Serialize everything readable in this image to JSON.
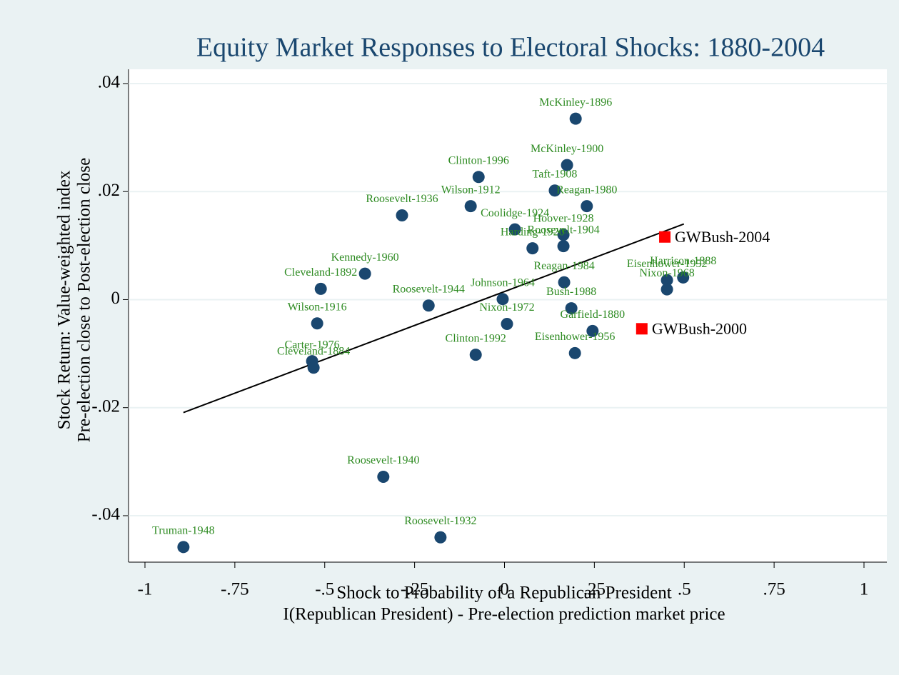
{
  "chart_data": {
    "type": "scatter",
    "title": "Equity Market Responses to Electoral Shocks: 1880-2004",
    "x_label": [
      "Shock to Probability of a Republican President",
      "I(Republican President) - Pre-election prediction market price"
    ],
    "y_label": [
      "Stock Return: Value-weighted index",
      "Pre-election close to Post-election close"
    ],
    "xlim": [
      -1.0457,
      1.0636
    ],
    "ylim": [
      -0.0486,
      0.04264
    ],
    "xticks": [
      -1,
      {
        "value": -0.75,
        "label": "-.75"
      },
      {
        "value": -0.5,
        "label": "-.5"
      },
      {
        "value": -0.25,
        "label": "-.25"
      },
      0,
      {
        "value": 0.25,
        "label": ".25"
      },
      {
        "value": 0.5,
        "label": ".5"
      },
      {
        "value": 0.75,
        "label": ".75"
      },
      1
    ],
    "yticks": [
      {
        "value": 0.04,
        "label": ".04"
      },
      {
        "value": 0.02,
        "label": ".02"
      },
      0,
      {
        "value": -0.02,
        "label": "-.02"
      },
      {
        "value": -0.04,
        "label": "-.04"
      }
    ],
    "grid": true,
    "series": [
      {
        "color": "#1a476f",
        "marker": "circle",
        "label_color": "#2e8b22",
        "label_position": "above",
        "labels": [
          "McKinley-1896",
          "McKinley-1900",
          "Clinton-1996",
          "Taft-1908",
          "Reagan-1980",
          "Wilson-1912",
          "Roosevelt-1936",
          "Coolidge-1924",
          "Hoover-1928",
          "Roosevelt-1904",
          "Harding-1920",
          "Kennedy-1960",
          "Cleveland-1892",
          "Harrison-1888",
          "Eisenhower-1952",
          "Nixon-1968",
          "Reagan-1984",
          "Roosevelt-1944",
          "Johnson-1964",
          "Bush-1988",
          "Wilson-1916",
          "Nixon-1972",
          "Garfield-1880",
          "Clinton-1992",
          "Eisenhower-1956",
          "Carter-1976",
          "Cleveland-1884",
          "Roosevelt-1940",
          "Roosevelt-1932",
          "Truman-1948"
        ],
        "x": [
          0.198,
          0.174,
          -0.072,
          0.14,
          0.229,
          -0.094,
          -0.285,
          0.029,
          0.164,
          0.164,
          0.078,
          -0.388,
          -0.511,
          0.497,
          0.452,
          0.452,
          0.166,
          -0.211,
          -0.005,
          0.186,
          -0.521,
          0.007,
          0.245,
          -0.08,
          0.196,
          -0.535,
          -0.531,
          -0.337,
          -0.178,
          -0.893
        ],
        "y": [
          0.0335,
          0.0249,
          0.0227,
          0.0202,
          0.0173,
          0.0173,
          0.0156,
          0.013,
          0.012,
          0.0099,
          0.0095,
          0.0048,
          0.002,
          0.0041,
          0.0036,
          0.0019,
          0.0032,
          -0.0011,
          0.0001,
          -0.0016,
          -0.0044,
          -0.0045,
          -0.0058,
          -0.0102,
          -0.0099,
          -0.0114,
          -0.0126,
          -0.0328,
          -0.044,
          -0.0458
        ]
      },
      {
        "color": "#ff0000",
        "marker": "square",
        "label_color": "#000000",
        "label_position": "right",
        "labels": [
          "GWBush-2004",
          "GWBush-2000"
        ],
        "x": [
          0.446,
          0.382
        ],
        "y": [
          0.0116,
          -0.0054
        ]
      }
    ],
    "fit_line": {
      "color": "#000000",
      "x": [
        -0.893,
        0.499
      ],
      "y": [
        -0.0209,
        0.014
      ]
    }
  }
}
